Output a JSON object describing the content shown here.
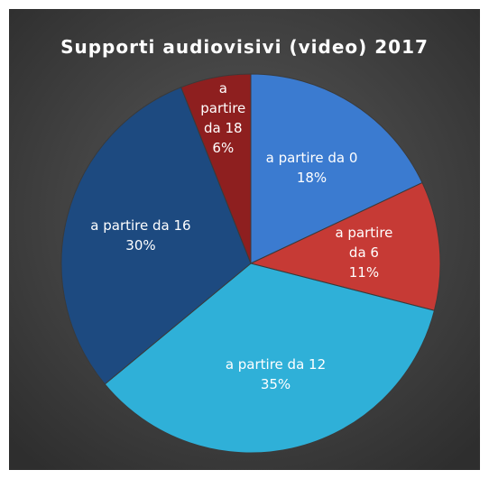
{
  "chart_data": {
    "type": "pie",
    "title": "Supporti audiovisivi (video) 2017",
    "categories": [
      "a partire da 0",
      "a partire da 6",
      "a partire da 12",
      "a partire da 16",
      "a partire da 18"
    ],
    "values": [
      18,
      11,
      35,
      30,
      6
    ],
    "value_labels": [
      "18%",
      "11%",
      "35%",
      "30%",
      "6%"
    ],
    "colors": [
      "#3b7bd0",
      "#c63a35",
      "#2fb0d8",
      "#1d4a80",
      "#8e1f1f"
    ]
  }
}
